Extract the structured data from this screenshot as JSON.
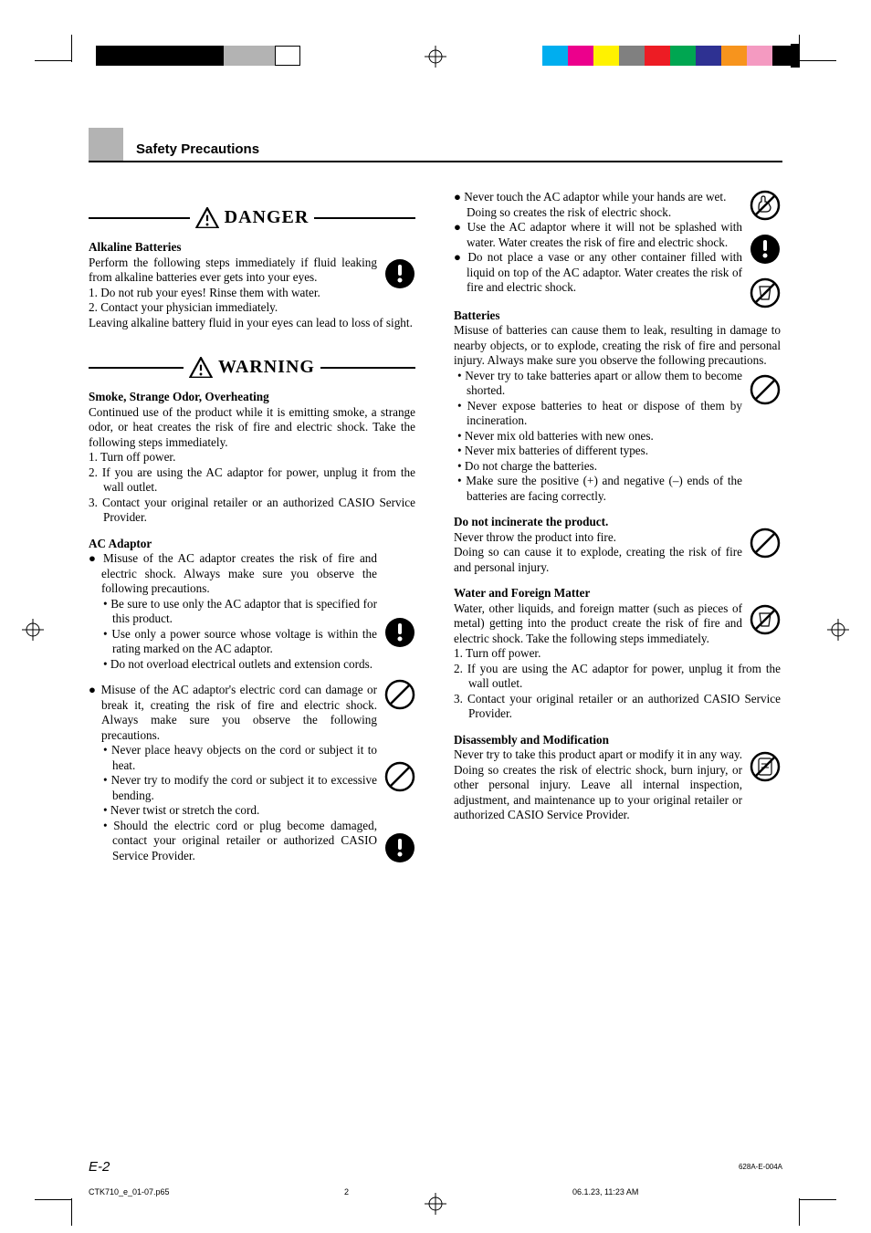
{
  "colorbars_left": [
    "#000000",
    "#000000",
    "#000000",
    "#000000",
    "#000000",
    "#b3b3b3",
    "#b3b3b3",
    "#ffffff"
  ],
  "colorbars_right": [
    "#00aeef",
    "#ec008c",
    "#fff200",
    "#808080",
    "#ed1c24",
    "#00a651",
    "#2e3192",
    "#f7941d",
    "#f49ac1",
    "#000000"
  ],
  "section_title": "Safety Precautions",
  "danger_label": "DANGER",
  "warning_label": "WARNING",
  "danger": {
    "alkaline_title": "Alkaline Batteries",
    "alkaline_intro": "Perform the following steps immediately if fluid leaking from alkaline batteries ever gets into your eyes.",
    "alkaline_1": "1. Do not rub your eyes! Rinse them with water.",
    "alkaline_2": "2. Contact your physician immediately.",
    "alkaline_after": "Leaving alkaline battery fluid in your eyes can lead to loss of sight."
  },
  "warning_left": {
    "smoke_title": "Smoke, Strange Odor, Overheating",
    "smoke_intro": "Continued use of the product while it is emitting smoke, a strange odor, or heat creates the risk of fire and electric shock. Take the following steps immediately.",
    "smoke_1": "1. Turn off power.",
    "smoke_2": "2. If you are using the AC adaptor for power, unplug it from the wall outlet.",
    "smoke_3": "3. Contact your original retailer or an authorized CASIO Service Provider.",
    "ac_title": "AC Adaptor",
    "ac_intro": "Misuse of the AC adaptor creates the risk of fire and electric shock. Always make sure you observe the following precautions.",
    "ac_b1": "Be sure to use only the AC adaptor that is specified for this product.",
    "ac_b2": "Use only a power source whose voltage is within the rating marked on the AC adaptor.",
    "ac_b3": "Do not overload electrical outlets and extension cords.",
    "cord_intro": "Misuse of the AC adaptor's electric cord can damage or break it, creating the risk of fire and electric shock.  Always make sure you observe the following precautions.",
    "cord_b1": "Never place heavy objects on the cord or subject it to heat.",
    "cord_b2": "Never try to modify the cord or subject it to excessive bending.",
    "cord_b3": "Never twist or stretch the cord.",
    "cord_b4": "Should the electric cord or plug become damaged, contact your original retailer or authorized CASIO Service Provider."
  },
  "warning_right": {
    "touch": "Never touch the AC adaptor while your hands are wet.",
    "touch_sub": "Doing so creates the risk of electric shock.",
    "splash": "Use the AC adaptor where it will not be splashed with water. Water creates the risk of fire and electric shock.",
    "vase": "Do not place a vase or any other container filled with liquid on top of the AC adaptor. Water creates the risk of fire and electric shock.",
    "batt_title": "Batteries",
    "batt_intro": "Misuse of batteries can cause them to leak, resulting in damage to nearby objects, or to explode, creating the risk of fire and personal injury. Always make sure you observe the following precautions.",
    "batt_b1": "Never try to take batteries apart or allow them to become shorted.",
    "batt_b2": "Never expose batteries to heat or dispose of them by incineration.",
    "batt_b3": "Never mix old batteries with new ones.",
    "batt_b4": "Never mix batteries of different types.",
    "batt_b5": "Do not charge the batteries.",
    "batt_b6": "Make sure the positive (+) and negative (–) ends of the batteries are facing correctly.",
    "incin_title": "Do not incinerate the product.",
    "incin_1": "Never throw the product into fire.",
    "incin_2": "Doing so can cause it to explode, creating the risk of fire and personal injury.",
    "water_title": "Water and Foreign Matter",
    "water_intro": "Water, other liquids, and foreign matter (such as pieces of metal) getting into the product create the risk of fire and electric shock. Take the following steps immediately.",
    "water_1": "1. Turn off power.",
    "water_2": "2. If you are using the AC adaptor for power, unplug it from the wall outlet.",
    "water_3": "3. Contact your original retailer or an authorized CASIO Service Provider.",
    "disasm_title": "Disassembly and Modification",
    "disasm_body": "Never try to take this product apart or modify it in any way. Doing so creates the risk of electric shock, burn injury, or other personal injury. Leave all internal inspection, adjustment, and maintenance up to your original retailer or authorized CASIO Service Provider."
  },
  "page_num": "E-2",
  "doc_code": "628A-E-004A",
  "footer_file": "CTK710_e_01-07.p65",
  "footer_pg": "2",
  "footer_date": "06.1.23, 11:23 AM"
}
